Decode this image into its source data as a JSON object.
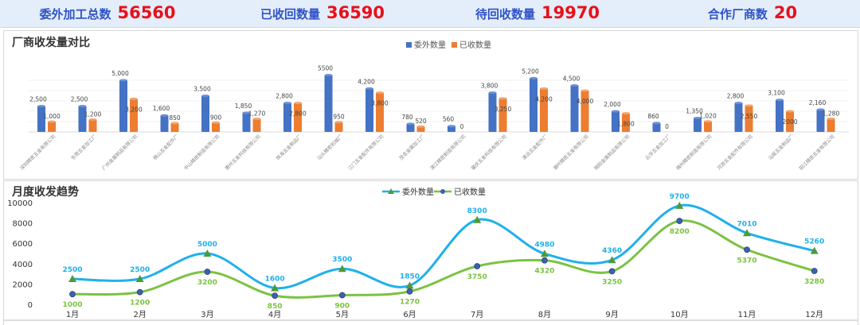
{
  "kpis": [
    {
      "label": "委外加工总数",
      "value": "56560"
    },
    {
      "label": "已收回数量",
      "value": "36590"
    },
    {
      "label": "待回收数量",
      "value": "19970"
    },
    {
      "label": "合作厂商数",
      "value": "20"
    }
  ],
  "colors": {
    "sent": "#4472c4",
    "received": "#ed7d31",
    "line_sent": "#1fb0ec",
    "line_received": "#7cc242",
    "marker_sent": "#4e9a3a",
    "marker_received": "#3f5fb0"
  },
  "chart_data": [
    {
      "type": "bar",
      "title": "厂商收发量对比",
      "categories": [
        "深圳精密五金有限公司",
        "东莞五金加工厂",
        "广州金属制品有限公司",
        "佛山五金配件厂",
        "中山精密制造有限公司",
        "惠州五金科技有限公司",
        "珠海五金制品厂",
        "汕头精密机械厂",
        "江门五金配件有限公司",
        "茂名金属加工厂",
        "湛江精密制造有限公司",
        "肇庆五金科技有限公司",
        "清远五金配件厂",
        "潮州精密五金有限公司",
        "揭阳金属制品有限公司",
        "云浮五金加工厂",
        "梅州精密制造有限公司",
        "河源五金配件有限公司",
        "汕尾五金制品厂",
        "阳江精密五金有限公司"
      ],
      "series": [
        {
          "name": "委外数量",
          "values": [
            2500,
            2500,
            5000,
            1600,
            3500,
            1850,
            2800,
            5500,
            4200,
            780,
            560,
            3800,
            5200,
            4500,
            2000,
            860,
            1350,
            2800,
            3100,
            2160
          ],
          "labels": [
            "2,500",
            "2,500",
            "5,000",
            "1,600",
            "3,500",
            "1,850",
            "2,800",
            "5500",
            "4,200",
            "780",
            "560",
            "3,800",
            "5,200",
            "4,500",
            "2,000",
            "860",
            "1,350",
            "2,800",
            "3,100",
            "2,160"
          ]
        },
        {
          "name": "已收数量",
          "values": [
            1000,
            1200,
            3200,
            850,
            900,
            1270,
            2800,
            950,
            3800,
            520,
            0,
            3250,
            4200,
            4000,
            1800,
            0,
            1020,
            2550,
            2000,
            1280
          ],
          "labels": [
            "1,000",
            "1,200",
            "3,200",
            "850",
            "900",
            "1,270",
            "2,800",
            "950",
            "3,800",
            "520",
            "0",
            "3,250",
            "4,200",
            "4,000",
            "1,800",
            "0",
            "1,020",
            "2,550",
            "2000",
            "1,280"
          ]
        }
      ],
      "legend": "top-center",
      "grid": true
    },
    {
      "type": "line",
      "title": "月度收发趋势",
      "categories": [
        "1月",
        "2月",
        "3月",
        "4月",
        "5月",
        "6月",
        "7月",
        "8月",
        "9月",
        "10月",
        "11月",
        "12月"
      ],
      "series": [
        {
          "name": "委外数量",
          "values": [
            2500,
            2500,
            5000,
            1600,
            3500,
            1850,
            8300,
            4980,
            4360,
            9700,
            7010,
            5260
          ]
        },
        {
          "name": "已收数量",
          "values": [
            1000,
            1200,
            3200,
            850,
            900,
            1270,
            3750,
            4320,
            3250,
            8200,
            5370,
            3280
          ]
        }
      ],
      "yticks": [
        0,
        2000,
        4000,
        6000,
        8000,
        10000
      ],
      "ylim": [
        0,
        10000
      ],
      "legend": "top-center",
      "smooth": true
    }
  ]
}
